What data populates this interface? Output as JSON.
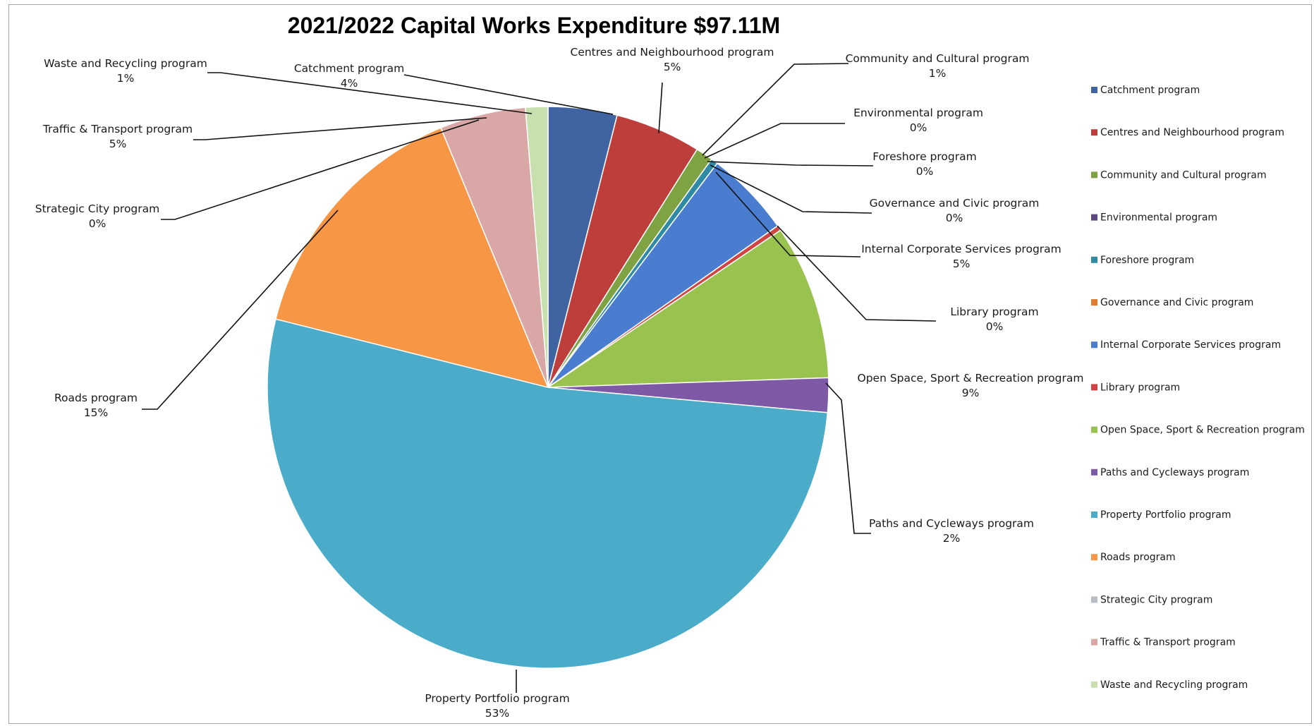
{
  "chart_data": {
    "type": "pie",
    "title": "2021/2022 Capital Works Expenditure $97.11M",
    "legend_position": "right",
    "slices": [
      {
        "name": "Catchment program",
        "value": 4.0,
        "label": "4%",
        "color": "#3f64a1"
      },
      {
        "name": "Centres and Neighbourhood program",
        "value": 5.0,
        "label": "5%",
        "color": "#be3e3c"
      },
      {
        "name": "Community and Cultural program",
        "value": 1.0,
        "label": "1%",
        "color": "#7fa243"
      },
      {
        "name": "Environmental program",
        "value": 0.0,
        "label": "0%",
        "color": "#5a4680"
      },
      {
        "name": "Foreshore program",
        "value": 0.4,
        "label": "0%",
        "color": "#2e8ba3"
      },
      {
        "name": "Governance and Civic program",
        "value": 0.0,
        "label": "0%",
        "color": "#e07b32"
      },
      {
        "name": "Internal Corporate Services program",
        "value": 5.0,
        "label": "5%",
        "color": "#4a7dd0"
      },
      {
        "name": "Library program",
        "value": 0.3,
        "label": "0%",
        "color": "#d04443"
      },
      {
        "name": "Open Space, Sport & Recreation program",
        "value": 9.0,
        "label": "9%",
        "color": "#9ac24e"
      },
      {
        "name": "Paths and Cycleways program",
        "value": 2.0,
        "label": "2%",
        "color": "#7e5aa6"
      },
      {
        "name": "Property Portfolio program",
        "value": 53.0,
        "label": "53%",
        "color": "#4aacc9"
      },
      {
        "name": "Roads program",
        "value": 15.0,
        "label": "15%",
        "color": "#f79645"
      },
      {
        "name": "Strategic City program",
        "value": 0.0,
        "label": "0%",
        "color": "#b8bcc4"
      },
      {
        "name": "Traffic & Transport program",
        "value": 5.0,
        "label": "5%",
        "color": "#d9a7a5"
      },
      {
        "name": "Waste and Recycling program",
        "value": 1.3,
        "label": "1%",
        "color": "#c8dfae"
      }
    ]
  }
}
